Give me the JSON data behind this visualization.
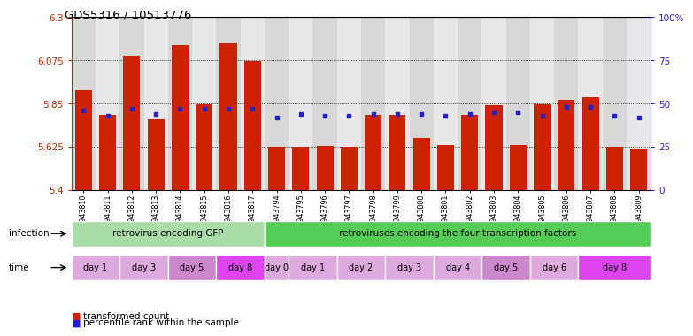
{
  "title": "GDS5316 / 10513776",
  "samples": [
    "GSM943810",
    "GSM943811",
    "GSM943812",
    "GSM943813",
    "GSM943814",
    "GSM943815",
    "GSM943816",
    "GSM943817",
    "GSM943794",
    "GSM943795",
    "GSM943796",
    "GSM943797",
    "GSM943798",
    "GSM943799",
    "GSM943800",
    "GSM943801",
    "GSM943802",
    "GSM943803",
    "GSM943804",
    "GSM943805",
    "GSM943806",
    "GSM943807",
    "GSM943808",
    "GSM943809"
  ],
  "red_values": [
    5.92,
    5.79,
    6.1,
    5.77,
    6.155,
    5.845,
    6.165,
    6.07,
    5.625,
    5.625,
    5.63,
    5.625,
    5.79,
    5.79,
    5.67,
    5.635,
    5.79,
    5.84,
    5.635,
    5.845,
    5.87,
    5.885,
    5.625,
    5.615
  ],
  "blue_values": [
    46,
    43,
    47,
    44,
    47,
    47,
    47,
    47,
    42,
    44,
    43,
    43,
    44,
    44,
    44,
    43,
    44,
    45,
    45,
    43,
    48,
    48,
    43,
    42
  ],
  "ylim_left": [
    5.4,
    6.3
  ],
  "ylim_right": [
    0,
    100
  ],
  "yticks_left": [
    5.4,
    5.625,
    5.85,
    6.075,
    6.3
  ],
  "yticks_right": [
    0,
    25,
    50,
    75,
    100
  ],
  "ytick_labels_left": [
    "5.4",
    "5.625",
    "5.85",
    "6.075",
    "6.3"
  ],
  "ytick_labels_right": [
    "0",
    "25",
    "50",
    "75",
    "100%"
  ],
  "bar_color": "#cc2200",
  "dot_color": "#2222cc",
  "col_bg_even": "#d8d8d8",
  "col_bg_odd": "#e8e8e8",
  "infection_groups": [
    {
      "label": "retrovirus encoding GFP",
      "start": 0,
      "end": 7,
      "color": "#aaddaa"
    },
    {
      "label": "retroviruses encoding the four transcription factors",
      "start": 8,
      "end": 23,
      "color": "#55cc55"
    }
  ],
  "time_groups": [
    {
      "label": "day 1",
      "start": 0,
      "end": 1,
      "color": "#ddaadd"
    },
    {
      "label": "day 3",
      "start": 2,
      "end": 3,
      "color": "#ddaadd"
    },
    {
      "label": "day 5",
      "start": 4,
      "end": 5,
      "color": "#cc88cc"
    },
    {
      "label": "day 8",
      "start": 6,
      "end": 7,
      "color": "#dd44ee"
    },
    {
      "label": "day 0",
      "start": 8,
      "end": 8,
      "color": "#ddaadd"
    },
    {
      "label": "day 1",
      "start": 9,
      "end": 10,
      "color": "#ddaadd"
    },
    {
      "label": "day 2",
      "start": 11,
      "end": 12,
      "color": "#ddaadd"
    },
    {
      "label": "day 3",
      "start": 13,
      "end": 14,
      "color": "#ddaadd"
    },
    {
      "label": "day 4",
      "start": 15,
      "end": 16,
      "color": "#ddaadd"
    },
    {
      "label": "day 5",
      "start": 17,
      "end": 18,
      "color": "#cc88cc"
    },
    {
      "label": "day 6",
      "start": 19,
      "end": 20,
      "color": "#ddaadd"
    },
    {
      "label": "day 8",
      "start": 21,
      "end": 23,
      "color": "#dd44ee"
    }
  ],
  "legend_items": [
    {
      "label": "transformed count",
      "color": "#cc2200"
    },
    {
      "label": "percentile rank within the sample",
      "color": "#2222cc"
    }
  ]
}
